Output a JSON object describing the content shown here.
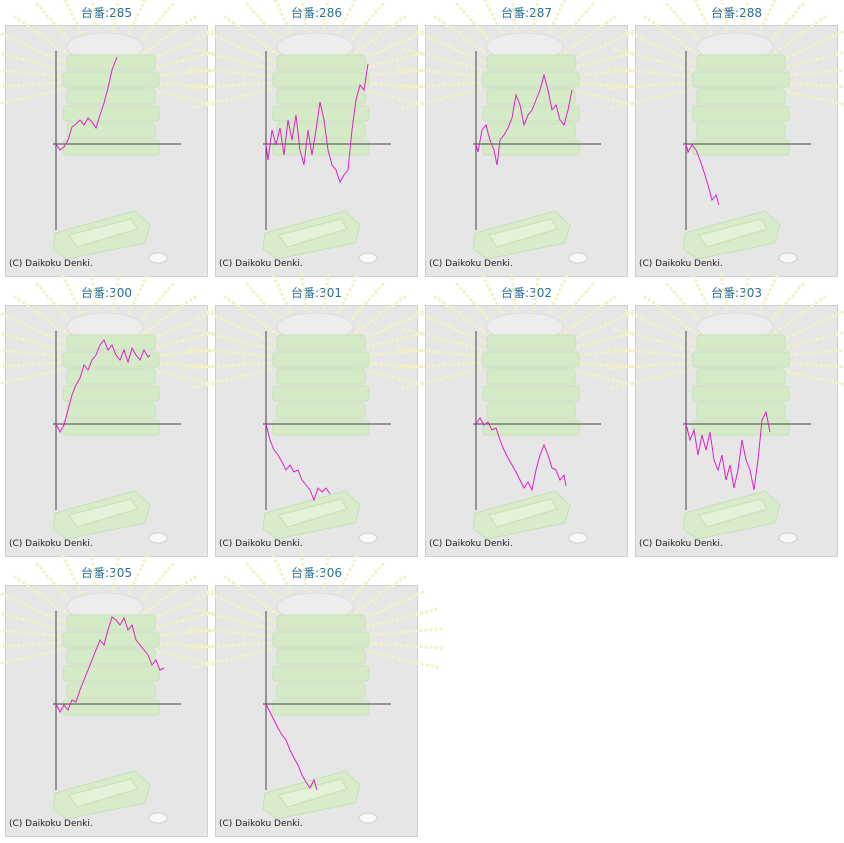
{
  "chart_data": [
    {
      "type": "line",
      "title": "台番:285",
      "credit": "(C) Daikoku Denki.",
      "xlim": [
        0,
        122
      ],
      "ylim": [
        -86,
        87
      ],
      "x": [
        0,
        4,
        8,
        12,
        16,
        20,
        24,
        28,
        32,
        36,
        40,
        44,
        48,
        52,
        56,
        61
      ],
      "series": [
        {
          "color": "#e020c8",
          "values": [
            0,
            -6,
            -3,
            4,
            17,
            20,
            24,
            19,
            26,
            22,
            16,
            29,
            41,
            56,
            74,
            87
          ]
        }
      ]
    },
    {
      "type": "line",
      "title": "台番:286",
      "credit": "(C) Daikoku Denki.",
      "xlim": [
        0,
        122
      ],
      "ylim": [
        -86,
        87
      ],
      "x": [
        0,
        2,
        6,
        10,
        14,
        18,
        22,
        26,
        30,
        34,
        38,
        42,
        46,
        50,
        54,
        58,
        62,
        66,
        70,
        74,
        78,
        82,
        86,
        90,
        94,
        98,
        102
      ],
      "series": [
        {
          "color": "#e020c8",
          "values": [
            0,
            -16,
            14,
            -1,
            16,
            -11,
            24,
            4,
            29,
            -6,
            -21,
            14,
            -11,
            14,
            42,
            24,
            -6,
            -21,
            -26,
            -38,
            -31,
            -26,
            14,
            44,
            59,
            54,
            80
          ]
        }
      ]
    },
    {
      "type": "line",
      "title": "台番:287",
      "credit": "(C) Daikoku Denki.",
      "xlim": [
        0,
        122
      ],
      "ylim": [
        -86,
        87
      ],
      "x": [
        0,
        2,
        6,
        10,
        14,
        18,
        21,
        24,
        28,
        32,
        36,
        40,
        44,
        48,
        52,
        56,
        60,
        64,
        68,
        72,
        76,
        80,
        84,
        88,
        92,
        96
      ],
      "series": [
        {
          "color": "#e020c8",
          "values": [
            0,
            -8,
            14,
            19,
            4,
            -6,
            -21,
            4,
            9,
            16,
            26,
            49,
            39,
            19,
            29,
            34,
            44,
            54,
            69,
            54,
            34,
            39,
            24,
            19,
            34,
            54
          ]
        }
      ]
    },
    {
      "type": "line",
      "title": "台番:288",
      "credit": "(C) Daikoku Denki.",
      "xlim": [
        0,
        122
      ],
      "ylim": [
        -86,
        87
      ],
      "x": [
        0,
        2,
        6,
        10,
        14,
        18,
        22,
        26,
        30,
        33
      ],
      "series": [
        {
          "color": "#e020c8",
          "values": [
            0,
            -8,
            -1,
            -6,
            -16,
            -28,
            -41,
            -56,
            -51,
            -61
          ]
        }
      ]
    },
    {
      "type": "line",
      "title": "台番:300",
      "credit": "(C) Daikoku Denki.",
      "xlim": [
        0,
        122
      ],
      "ylim": [
        -86,
        87
      ],
      "x": [
        0,
        4,
        8,
        12,
        16,
        20,
        24,
        28,
        32,
        36,
        40,
        44,
        48,
        52,
        56,
        60,
        64,
        68,
        72,
        76,
        80,
        84,
        88,
        92,
        94
      ],
      "series": [
        {
          "color": "#e020c8",
          "values": [
            0,
            -8,
            -1,
            14,
            29,
            39,
            46,
            59,
            54,
            64,
            69,
            79,
            84,
            74,
            79,
            69,
            64,
            74,
            62,
            76,
            69,
            64,
            74,
            67,
            69
          ]
        }
      ]
    },
    {
      "type": "line",
      "title": "台番:301",
      "credit": "(C) Daikoku Denki.",
      "xlim": [
        0,
        122
      ],
      "ylim": [
        -86,
        87
      ],
      "x": [
        0,
        4,
        8,
        12,
        16,
        20,
        24,
        28,
        32,
        36,
        40,
        44,
        48,
        52,
        56,
        60,
        64
      ],
      "series": [
        {
          "color": "#e020c8",
          "values": [
            0,
            -16,
            -26,
            -31,
            -38,
            -46,
            -41,
            -48,
            -46,
            -56,
            -61,
            -66,
            -76,
            -64,
            -68,
            -64,
            -70
          ]
        }
      ]
    },
    {
      "type": "line",
      "title": "台番:302",
      "credit": "(C) Daikoku Denki.",
      "xlim": [
        0,
        122
      ],
      "ylim": [
        -86,
        87
      ],
      "x": [
        0,
        4,
        8,
        12,
        16,
        20,
        24,
        28,
        32,
        36,
        40,
        44,
        48,
        52,
        56,
        60,
        64,
        68,
        72,
        76,
        80,
        84,
        88,
        90
      ],
      "series": [
        {
          "color": "#e020c8",
          "values": [
            0,
            6,
            -1,
            2,
            -6,
            -4,
            -16,
            -26,
            -34,
            -41,
            -48,
            -56,
            -64,
            -58,
            -66,
            -46,
            -31,
            -21,
            -31,
            -44,
            -46,
            -56,
            -51,
            -62
          ]
        }
      ]
    },
    {
      "type": "line",
      "title": "台番:303",
      "credit": "(C) Daikoku Denki.",
      "xlim": [
        0,
        122
      ],
      "ylim": [
        -86,
        87
      ],
      "x": [
        0,
        4,
        8,
        12,
        16,
        20,
        24,
        28,
        32,
        36,
        40,
        44,
        48,
        52,
        56,
        60,
        64,
        68,
        72,
        76,
        80,
        84
      ],
      "series": [
        {
          "color": "#e020c8",
          "values": [
            0,
            -16,
            -6,
            -31,
            -11,
            -26,
            -8,
            -36,
            -46,
            -31,
            -56,
            -41,
            -64,
            -46,
            -16,
            -36,
            -46,
            -66,
            -36,
            4,
            12,
            -8
          ]
        }
      ]
    },
    {
      "type": "line",
      "title": "台番:305",
      "credit": "(C) Daikoku Denki.",
      "xlim": [
        0,
        122
      ],
      "ylim": [
        -86,
        87
      ],
      "x": [
        0,
        4,
        8,
        12,
        16,
        20,
        24,
        28,
        32,
        36,
        40,
        44,
        48,
        52,
        56,
        60,
        64,
        68,
        72,
        76,
        80,
        84,
        88,
        92,
        96,
        100,
        104,
        108
      ],
      "series": [
        {
          "color": "#e020c8",
          "values": [
            0,
            -8,
            -1,
            -6,
            4,
            2,
            14,
            24,
            34,
            44,
            54,
            64,
            59,
            74,
            87,
            84,
            79,
            86,
            74,
            79,
            64,
            59,
            54,
            49,
            39,
            44,
            34,
            36
          ]
        }
      ]
    },
    {
      "type": "line",
      "title": "台番:306",
      "credit": "(C) Daikoku Denki.",
      "xlim": [
        0,
        122
      ],
      "ylim": [
        -86,
        87
      ],
      "x": [
        0,
        4,
        8,
        12,
        16,
        20,
        24,
        28,
        32,
        36,
        40,
        44,
        48,
        51
      ],
      "series": [
        {
          "color": "#e020c8",
          "values": [
            0,
            -8,
            -16,
            -24,
            -31,
            -36,
            -46,
            -54,
            -61,
            -71,
            -78,
            -84,
            -76,
            -86
          ]
        }
      ]
    }
  ]
}
